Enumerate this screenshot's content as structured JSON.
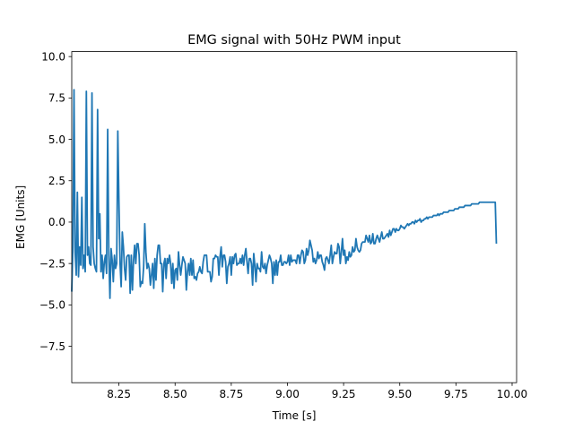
{
  "chart_data": {
    "type": "line",
    "title": "EMG signal with 50Hz PWM input",
    "xlabel": "Time [s]",
    "ylabel": "EMG [Units]",
    "xlim": [
      8.04,
      10.02
    ],
    "ylim": [
      -9.7,
      10.3
    ],
    "xticks": [
      {
        "value": 8.25,
        "label": "8.25"
      },
      {
        "value": 8.5,
        "label": "8.50"
      },
      {
        "value": 8.75,
        "label": "8.75"
      },
      {
        "value": 9.0,
        "label": "9.00"
      },
      {
        "value": 9.25,
        "label": "9.25"
      },
      {
        "value": 9.5,
        "label": "9.50"
      },
      {
        "value": 9.75,
        "label": "9.75"
      },
      {
        "value": 10.0,
        "label": "10.00"
      }
    ],
    "yticks": [
      {
        "value": -7.5,
        "label": "−7.5"
      },
      {
        "value": -5.0,
        "label": "−5.0"
      },
      {
        "value": -2.5,
        "label": "−2.5"
      },
      {
        "value": 0.0,
        "label": "0.0"
      },
      {
        "value": 2.5,
        "label": "2.5"
      },
      {
        "value": 5.0,
        "label": "5.0"
      },
      {
        "value": 7.5,
        "label": "7.5"
      },
      {
        "value": 10.0,
        "label": "10.0"
      }
    ],
    "grid": false,
    "line_color": "#1f77b4",
    "series": [
      {
        "x_start": 8.04,
        "x_step": 0.005,
        "values": [
          -4.2,
          -1.5,
          8.0,
          -1.8,
          -3.2,
          1.8,
          -3.3,
          -1.5,
          -2.6,
          1.5,
          -2.8,
          -2.0,
          -3.0,
          7.9,
          -2.0,
          -1.5,
          -2.5,
          -2.6,
          7.8,
          -1.5,
          -2.5,
          -2.8,
          -3.0,
          6.8,
          -1.0,
          0.5,
          -3.0,
          -2.0,
          -3.4,
          -2.4,
          -2.0,
          -3.1,
          5.6,
          -2.0,
          -4.6,
          -1.6,
          -2.3,
          -3.6,
          -2.0,
          -2.8,
          -2.5,
          5.5,
          1.2,
          -2.5,
          -3.9,
          -0.6,
          -1.5,
          -2.8,
          -3.5,
          -2.1,
          -2.0,
          -2.0,
          -4.3,
          -2.0,
          -4.1,
          -2.3,
          -1.4,
          -2.5,
          -1.3,
          -1.3,
          -2.0,
          -3.9,
          -3.6,
          -3.7,
          -2.7,
          -0.1,
          -1.8,
          -2.8,
          -2.5,
          -2.8,
          -3.8,
          -3.2,
          -2.5,
          -4.0,
          -2.2,
          -3.5,
          -2.0,
          -1.4,
          -1.4,
          -2.5,
          -2.5,
          -4.2,
          -2.5,
          -2.2,
          -3.4,
          -2.2,
          -2.5,
          -2.0,
          -2.5,
          -3.7,
          -2.5,
          -4.0,
          -2.9,
          -2.8,
          -3.5,
          -1.8,
          -2.6,
          -3.2,
          -2.6,
          -2.1,
          -2.3,
          -2.5,
          -4.1,
          -3.0,
          -2.5,
          -3.2,
          -2.2,
          -3.2,
          -2.3,
          -3.4,
          -3.3,
          -3.5,
          -3.1,
          -3.0,
          -2.7,
          -3.0,
          -3.1,
          -2.4,
          -2.0,
          -2.0,
          -2.0,
          -3.0,
          -3.0,
          -3.0,
          -3.6,
          -3.3,
          -2.2,
          -2.2,
          -2.0,
          -2.1,
          -2.1,
          -3.2,
          -2.1,
          -1.5,
          -2.7,
          -2.0,
          -2.0,
          -2.4,
          -3.7,
          -2.7,
          -2.5,
          -2.1,
          -3.2,
          -2.1,
          -2.5,
          -2.0,
          -1.9,
          -2.6,
          -2.5,
          -2.5,
          -2.2,
          -2.5,
          -2.0,
          -2.6,
          -2.0,
          -1.6,
          -2.4,
          -3.1,
          -2.2,
          -2.2,
          -2.5,
          -3.8,
          -1.9,
          -2.6,
          -3.6,
          -2.5,
          -2.8,
          -2.8,
          -3.0,
          -1.8,
          -2.7,
          -2.8,
          -2.5,
          -3.1,
          -2.6,
          -2.3,
          -2.0,
          -2.2,
          -2.5,
          -3.7,
          -2.4,
          -3.2,
          -2.3,
          -3.2,
          -2.4,
          -2.4,
          -2.0,
          -2.6,
          -2.6,
          -2.4,
          -2.4,
          -2.5,
          -2.4,
          -2.0,
          -2.6,
          -2.0,
          -2.4,
          -2.3,
          -2.3,
          -2.3,
          -2.5,
          -2.0,
          -2.0,
          -2.5,
          -2.0,
          -1.7,
          -1.8,
          -2.5,
          -2.3,
          -1.6,
          -2.0,
          -1.7,
          -1.1,
          -1.4,
          -1.7,
          -2.4,
          -2.2,
          -2.5,
          -2.3,
          -1.8,
          -2.2,
          -2.0,
          -2.0,
          -2.4,
          -2.6,
          -2.9,
          -2.2,
          -2.1,
          -2.3,
          -2.5,
          -2.0,
          -1.4,
          -2.5,
          -2.1,
          -1.8,
          -1.9,
          -1.9,
          -1.3,
          -1.5,
          -2.5,
          -1.8,
          -1.0,
          -2.0,
          -1.7,
          -2.5,
          -2.1,
          -2.3,
          -1.8,
          -2.1,
          -2.0,
          -1.5,
          -1.8,
          -1.7,
          -1.0,
          -1.5,
          -1.7,
          -1.8,
          -1.7,
          -1.3,
          -1.2,
          -1.2,
          -1.2,
          -0.8,
          -1.0,
          -1.2,
          -0.8,
          -1.3,
          -1.2,
          -0.7,
          -1.3,
          -1.3,
          -1.0,
          -0.8,
          -1.0,
          -1.2,
          -0.9,
          -0.6,
          -1.0,
          -1.0,
          -0.9,
          -0.8,
          -0.7,
          -0.9,
          -0.5,
          -0.8,
          -0.6,
          -0.4,
          -0.4,
          -0.6,
          -0.4,
          -0.5,
          -0.5,
          -0.4,
          -0.2,
          -0.3,
          -0.3,
          -0.4,
          -0.3,
          -0.2,
          -0.1,
          -0.2,
          -0.1,
          -0.1,
          0.0,
          0.0,
          -0.1,
          0.1,
          0.0,
          0.1,
          0.1,
          0.2,
          0.0,
          0.1,
          0.1,
          0.2,
          0.2,
          0.3,
          0.2,
          0.3,
          0.3,
          0.3,
          0.3,
          0.4,
          0.4,
          0.4,
          0.4,
          0.5,
          0.4,
          0.5,
          0.5,
          0.5,
          0.6,
          0.6,
          0.6,
          0.6,
          0.6,
          0.7,
          0.7,
          0.7,
          0.7,
          0.7,
          0.8,
          0.8,
          0.8,
          0.8,
          0.9,
          0.9,
          0.9,
          0.9,
          0.9,
          1.0,
          1.0,
          1.0,
          1.0,
          1.0,
          1.0,
          1.1,
          1.1,
          1.1,
          1.1,
          1.1,
          1.1,
          1.1,
          1.2,
          1.2,
          1.2,
          1.2,
          1.2,
          1.2,
          1.2,
          1.2,
          1.2,
          1.2,
          1.2,
          1.2,
          1.2,
          1.2,
          1.2,
          -1.3
        ]
      }
    ]
  }
}
